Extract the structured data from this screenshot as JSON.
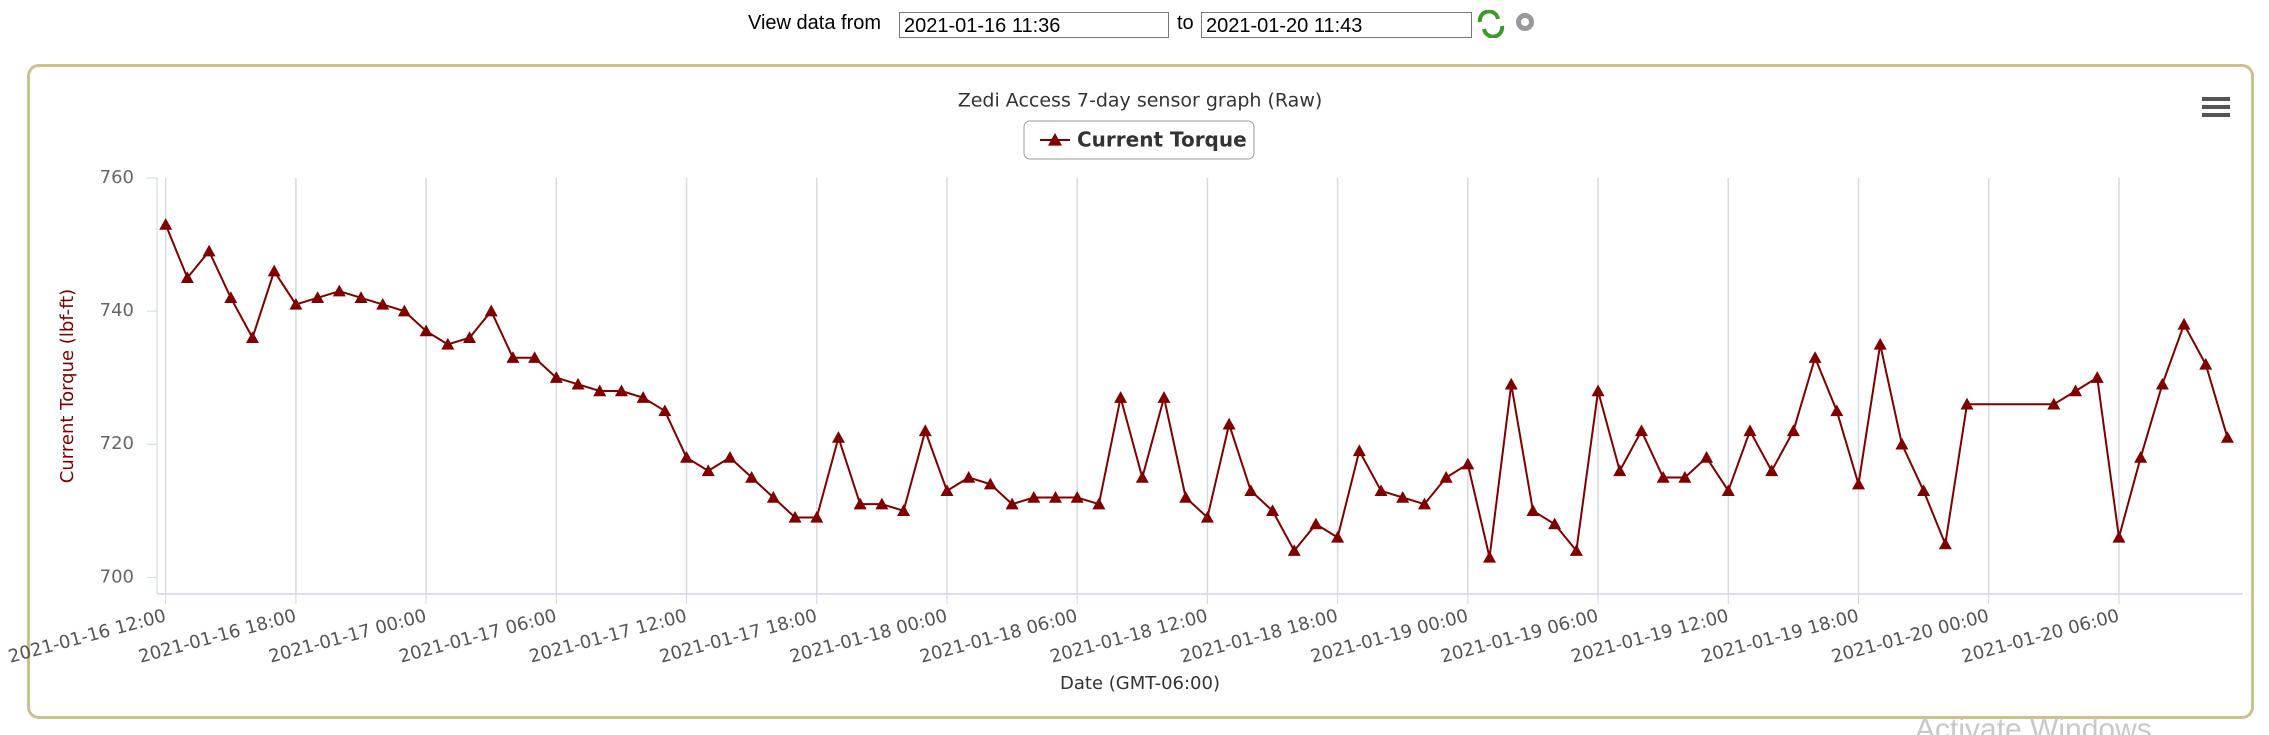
{
  "header": {
    "label_from": "View data from",
    "from": "2021-01-16 11:36",
    "label_to": "to",
    "to": "2021-01-20 11:43"
  },
  "chart_data": {
    "type": "line",
    "title": "Zedi Access 7-day sensor graph (Raw)",
    "x_label": "Date (GMT-06:00)",
    "y_label": "Current Torque (lbf-ft)",
    "xlim": [
      "2021-01-16 11:36",
      "2021-01-20 11:43"
    ],
    "xticks": [
      "2021-01-16 12:00",
      "2021-01-16 18:00",
      "2021-01-17 00:00",
      "2021-01-17 06:00",
      "2021-01-17 12:00",
      "2021-01-17 18:00",
      "2021-01-18 00:00",
      "2021-01-18 06:00",
      "2021-01-18 12:00",
      "2021-01-18 18:00",
      "2021-01-19 00:00",
      "2021-01-19 06:00",
      "2021-01-19 12:00",
      "2021-01-19 18:00",
      "2021-01-20 00:00",
      "2021-01-20 06:00"
    ],
    "ylim": [
      697.5,
      760
    ],
    "yticks": [
      700,
      720,
      740,
      760
    ],
    "grid": "x",
    "x": [
      "2021-01-16 12:00",
      "2021-01-16 13:00",
      "2021-01-16 14:00",
      "2021-01-16 15:00",
      "2021-01-16 16:00",
      "2021-01-16 17:00",
      "2021-01-16 18:00",
      "2021-01-16 19:00",
      "2021-01-16 20:00",
      "2021-01-16 21:00",
      "2021-01-16 22:00",
      "2021-01-16 23:00",
      "2021-01-17 00:00",
      "2021-01-17 01:00",
      "2021-01-17 02:00",
      "2021-01-17 03:00",
      "2021-01-17 04:00",
      "2021-01-17 05:00",
      "2021-01-17 06:00",
      "2021-01-17 07:00",
      "2021-01-17 08:00",
      "2021-01-17 09:00",
      "2021-01-17 10:00",
      "2021-01-17 11:00",
      "2021-01-17 12:00",
      "2021-01-17 13:00",
      "2021-01-17 14:00",
      "2021-01-17 15:00",
      "2021-01-17 16:00",
      "2021-01-17 17:00",
      "2021-01-17 18:00",
      "2021-01-17 19:00",
      "2021-01-17 20:00",
      "2021-01-17 21:00",
      "2021-01-17 22:00",
      "2021-01-17 23:00",
      "2021-01-18 00:00",
      "2021-01-18 01:00",
      "2021-01-18 02:00",
      "2021-01-18 03:00",
      "2021-01-18 04:00",
      "2021-01-18 05:00",
      "2021-01-18 06:00",
      "2021-01-18 07:00",
      "2021-01-18 08:00",
      "2021-01-18 09:00",
      "2021-01-18 10:00",
      "2021-01-18 11:00",
      "2021-01-18 12:00",
      "2021-01-18 13:00",
      "2021-01-18 14:00",
      "2021-01-18 15:00",
      "2021-01-18 16:00",
      "2021-01-18 17:00",
      "2021-01-18 18:00",
      "2021-01-18 19:00",
      "2021-01-18 20:00",
      "2021-01-18 21:00",
      "2021-01-18 22:00",
      "2021-01-18 23:00",
      "2021-01-19 00:00",
      "2021-01-19 01:00",
      "2021-01-19 02:00",
      "2021-01-19 03:00",
      "2021-01-19 04:00",
      "2021-01-19 05:00",
      "2021-01-19 06:00",
      "2021-01-19 07:00",
      "2021-01-19 08:00",
      "2021-01-19 09:00",
      "2021-01-19 10:00",
      "2021-01-19 11:00",
      "2021-01-19 12:00",
      "2021-01-19 13:00",
      "2021-01-19 14:00",
      "2021-01-19 15:00",
      "2021-01-19 16:00",
      "2021-01-19 17:00",
      "2021-01-19 18:00",
      "2021-01-19 19:00",
      "2021-01-19 20:00",
      "2021-01-19 21:00",
      "2021-01-19 22:00",
      "2021-01-19 23:00",
      "2021-01-20 03:00",
      "2021-01-20 04:00",
      "2021-01-20 05:00",
      "2021-01-20 06:00",
      "2021-01-20 07:00",
      "2021-01-20 08:00",
      "2021-01-20 09:00",
      "2021-01-20 10:00",
      "2021-01-20 11:00"
    ],
    "series": [
      {
        "name": "Current Torque",
        "color": "#800000",
        "marker": "triangle",
        "values": [
          753,
          745,
          749,
          742,
          736,
          746,
          741,
          742,
          743,
          742,
          741,
          740,
          737,
          735,
          736,
          740,
          733,
          733,
          730,
          729,
          728,
          728,
          727,
          725,
          718,
          716,
          718,
          715,
          712,
          709,
          709,
          721,
          711,
          711,
          710,
          722,
          713,
          715,
          714,
          711,
          712,
          712,
          712,
          711,
          727,
          715,
          727,
          712,
          709,
          723,
          713,
          710,
          704,
          708,
          706,
          719,
          713,
          712,
          711,
          715,
          717,
          703,
          729,
          710,
          708,
          704,
          728,
          716,
          722,
          715,
          715,
          718,
          713,
          722,
          716,
          722,
          733,
          725,
          714,
          735,
          720,
          713,
          705,
          726,
          726,
          728,
          730,
          706,
          718,
          729,
          738,
          732,
          721
        ]
      }
    ]
  },
  "watermark": "Activate Windows"
}
